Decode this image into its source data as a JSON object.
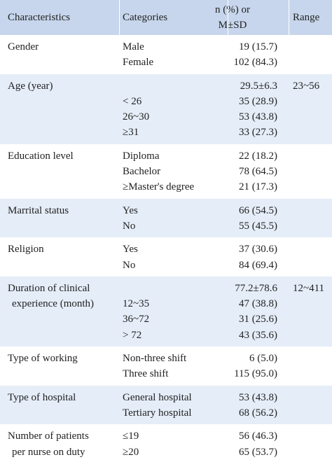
{
  "table": {
    "header": {
      "characteristics": "Characteristics",
      "categories": "Categories",
      "value": [
        "n (%) or",
        "M±SD"
      ],
      "range": "Range"
    },
    "rows": [
      {
        "characteristic": [
          "Gender"
        ],
        "lines": [
          {
            "category": "Male",
            "value": "19 (15.7)"
          },
          {
            "category": "Female",
            "value": "102 (84.3)"
          }
        ]
      },
      {
        "characteristic": [
          "Age (year)"
        ],
        "range": "23~56",
        "lines": [
          {
            "category": null,
            "value": "29.5±6.3"
          },
          {
            "category": "< 26",
            "value": "35 (28.9)"
          },
          {
            "category": "26~30",
            "value": "53 (43.8)"
          },
          {
            "category": "≥31",
            "value": "33 (27.3)"
          }
        ]
      },
      {
        "characteristic": [
          "Education level"
        ],
        "lines": [
          {
            "category": "Diploma",
            "value": "22 (18.2)"
          },
          {
            "category": "Bachelor",
            "value": "78 (64.5)"
          },
          {
            "category": "≥Master's degree",
            "value": "21 (17.3)"
          }
        ]
      },
      {
        "characteristic": [
          "Marrital status"
        ],
        "lines": [
          {
            "category": "Yes",
            "value": "66 (54.5)"
          },
          {
            "category": "No",
            "value": "55 (45.5)"
          }
        ]
      },
      {
        "characteristic": [
          "Religion"
        ],
        "lines": [
          {
            "category": "Yes",
            "value": "37 (30.6)"
          },
          {
            "category": "No",
            "value": "84 (69.4)"
          }
        ]
      },
      {
        "characteristic": [
          "Duration of clinical",
          "experience (month)"
        ],
        "range": "12~411",
        "lines": [
          {
            "category": null,
            "value": "77.2±78.6"
          },
          {
            "category": "12~35",
            "value": "47 (38.8)"
          },
          {
            "category": "36~72",
            "value": "31 (25.6)"
          },
          {
            "category": "> 72",
            "value": "43 (35.6)"
          }
        ]
      },
      {
        "characteristic": [
          "Type of working"
        ],
        "lines": [
          {
            "category": "Non-three shift",
            "value": "6 (5.0)"
          },
          {
            "category": "Three shift",
            "value": "115 (95.0)"
          }
        ]
      },
      {
        "characteristic": [
          "Type of hospital"
        ],
        "lines": [
          {
            "category": "General hospital",
            "value": "53 (43.8)"
          },
          {
            "category": "Tertiary hospital",
            "value": "68 (56.2)"
          }
        ]
      },
      {
        "characteristic": [
          "Number of patients",
          "per nurse on duty"
        ],
        "lines": [
          {
            "category": "≤19",
            "value": "56 (46.3)"
          },
          {
            "category": "≥20",
            "value": "65 (53.7)"
          }
        ]
      }
    ]
  }
}
